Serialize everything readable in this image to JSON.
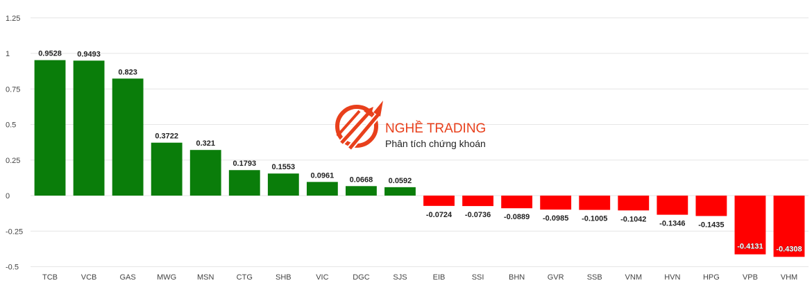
{
  "chart_data": {
    "type": "bar",
    "categories": [
      "TCB",
      "VCB",
      "GAS",
      "MWG",
      "MSN",
      "CTG",
      "SHB",
      "VIC",
      "DGC",
      "SJS",
      "EIB",
      "SSI",
      "BHN",
      "GVR",
      "SSB",
      "VNM",
      "HVN",
      "HPG",
      "VPB",
      "VHM"
    ],
    "values": [
      0.9528,
      0.9493,
      0.823,
      0.3722,
      0.321,
      0.1793,
      0.1553,
      0.0961,
      0.0668,
      0.0592,
      -0.0724,
      -0.0736,
      -0.0889,
      -0.0985,
      -0.1005,
      -0.1042,
      -0.1346,
      -0.1435,
      -0.4131,
      -0.4308
    ],
    "data_labels": [
      "0.9528",
      "0.9493",
      "0.823",
      "0.3722",
      "0.321",
      "0.1793",
      "0.1553",
      "0.0961",
      "0.0668",
      "0.0592",
      "-0.0724",
      "-0.0736",
      "-0.0889",
      "-0.0985",
      "-0.1005",
      "-0.1042",
      "-0.1346",
      "-0.1435",
      "-0.4131",
      "-0.4308"
    ],
    "y_ticks": [
      1.25,
      1,
      0.75,
      0.5,
      0.25,
      0,
      -0.25,
      -0.5
    ],
    "y_tick_labels": [
      "1.25",
      "1",
      "0.75",
      "0.5",
      "0.25",
      "0",
      "-0.25",
      "-0.5"
    ],
    "ylim": [
      -0.5,
      1.25
    ],
    "grid": true,
    "legend": "none",
    "colors": {
      "positive": "#0a7d0a",
      "negative": "#ff0000"
    }
  },
  "watermark": {
    "title": "NGHỀ TRADING",
    "subtitle": "Phân tích chứng khoán",
    "logo_icon": "rising-arrows-logo-icon",
    "color": "#e8401c"
  }
}
